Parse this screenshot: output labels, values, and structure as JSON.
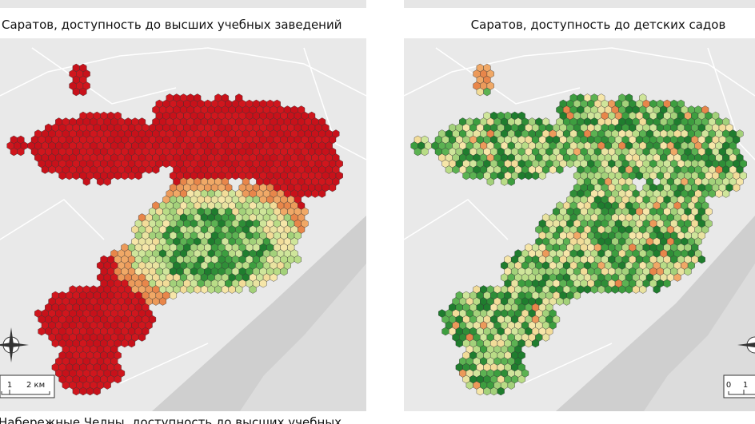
{
  "panels": [
    {
      "title": "Саратов, доступность до высших учебных заведений",
      "scale": [
        "1",
        "2 км"
      ]
    },
    {
      "title": "Саратов, доступность до детских садов",
      "scale": [
        "0",
        "1"
      ]
    }
  ],
  "next_title": "Набережные Челны, доступность до высших учебных"
}
